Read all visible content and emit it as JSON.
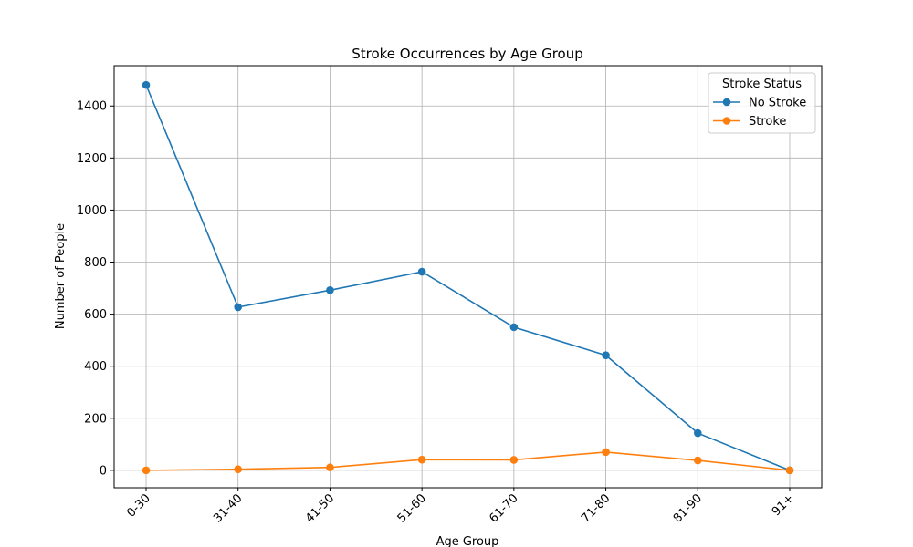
{
  "chart_data": {
    "type": "line",
    "title": "Stroke Occurrences by Age Group",
    "xlabel": "Age Group",
    "ylabel": "Number of People",
    "categories": [
      "0-30",
      "31-40",
      "41-50",
      "51-60",
      "61-70",
      "71-80",
      "81-90",
      "91+"
    ],
    "ylim": [
      -67,
      1555
    ],
    "yticks": [
      0,
      200,
      400,
      600,
      800,
      1000,
      1200,
      1400
    ],
    "grid": true,
    "legend": {
      "title": "Stroke Status",
      "position": "top-right"
    },
    "series": [
      {
        "name": "No Stroke",
        "color": "#1f77b4",
        "values": [
          1481,
          627,
          692,
          763,
          550,
          442,
          143,
          0
        ]
      },
      {
        "name": "Stroke",
        "color": "#ff7f0e",
        "values": [
          0,
          4,
          11,
          41,
          40,
          70,
          38,
          0
        ]
      }
    ]
  }
}
